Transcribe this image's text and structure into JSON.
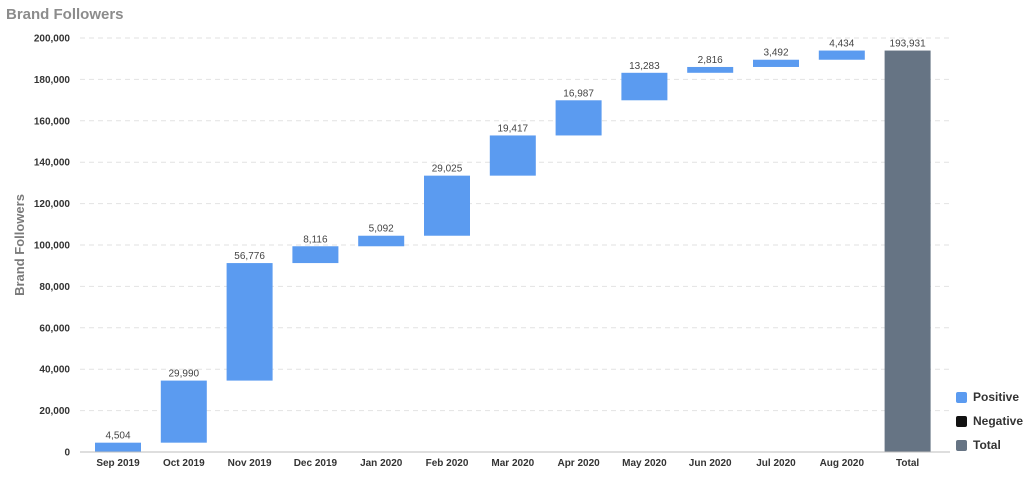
{
  "chart_data": {
    "type": "bar",
    "subtype": "waterfall",
    "title": "Brand Followers",
    "xlabel": "",
    "ylabel": "Brand Followers",
    "ylim": [
      0,
      200000
    ],
    "yticks": [
      0,
      20000,
      40000,
      60000,
      80000,
      100000,
      120000,
      140000,
      160000,
      180000,
      200000
    ],
    "ytick_labels": [
      "0",
      "20,000",
      "40,000",
      "60,000",
      "80,000",
      "100,000",
      "120,000",
      "140,000",
      "160,000",
      "180,000",
      "200,000"
    ],
    "grid": true,
    "categories": [
      "Sep 2019",
      "Oct 2019",
      "Nov 2019",
      "Dec 2019",
      "Jan 2020",
      "Feb 2020",
      "Mar 2020",
      "Apr 2020",
      "May 2020",
      "Jun 2020",
      "Jul 2020",
      "Aug 2020",
      "Total"
    ],
    "values": [
      4504,
      29990,
      56776,
      8116,
      5092,
      29025,
      19417,
      16987,
      13283,
      2816,
      3492,
      4434,
      193931
    ],
    "value_labels": [
      "4,504",
      "29,990",
      "56,776",
      "8,116",
      "5,092",
      "29,025",
      "19,417",
      "16,987",
      "13,283",
      "2,816",
      "3,492",
      "4,434",
      "193,931"
    ],
    "kinds": [
      "positive",
      "positive",
      "positive",
      "positive",
      "positive",
      "positive",
      "positive",
      "positive",
      "positive",
      "positive",
      "positive",
      "positive",
      "total"
    ],
    "legend_position": "bottom-right",
    "legend": [
      {
        "name": "Positive",
        "color": "#5b9bf0"
      },
      {
        "name": "Negative",
        "color": "#111111"
      },
      {
        "name": "Total",
        "color": "#667484"
      }
    ]
  }
}
